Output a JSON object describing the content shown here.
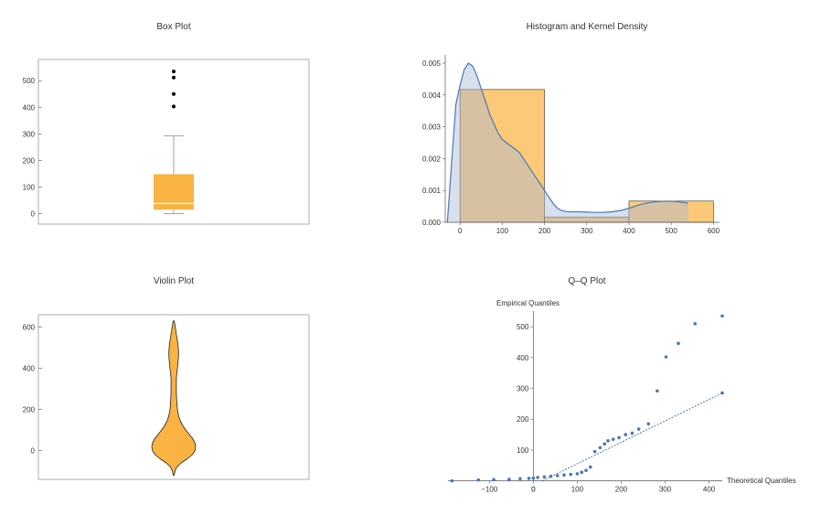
{
  "colors": {
    "orange": "#F9B343",
    "orange_light": "#FBC977",
    "blue": "#4A77B4",
    "blue_fill": "#D6DFEE",
    "frame": "#999999",
    "axis": "#555555",
    "text": "#333333"
  },
  "chart_data": [
    {
      "type": "box",
      "title": "Box Plot",
      "ylim": [
        -40,
        580
      ],
      "yticks": [
        0,
        100,
        200,
        300,
        400,
        500
      ],
      "box": {
        "whisker_low": 0,
        "q1": 15,
        "median": 38,
        "q3": 148,
        "whisker_high": 292
      },
      "outliers": [
        403,
        450,
        512,
        535
      ]
    },
    {
      "type": "histogram",
      "title": "Histogram and Kernel Density",
      "xlim": [
        -35,
        610
      ],
      "ylim": [
        0,
        0.0052
      ],
      "xticks": [
        0,
        100,
        200,
        300,
        400,
        500,
        600
      ],
      "yticks": [
        {
          "v": 0.0,
          "label": "0.000"
        },
        {
          "v": 0.001,
          "label": "0.001"
        },
        {
          "v": 0.002,
          "label": "0.002"
        },
        {
          "v": 0.003,
          "label": "0.003"
        },
        {
          "v": 0.004,
          "label": "0.004"
        },
        {
          "v": 0.005,
          "label": "0.005"
        }
      ],
      "bins": [
        {
          "x0": 0,
          "x1": 200,
          "density": 0.00417
        },
        {
          "x0": 200,
          "x1": 400,
          "density": 0.000167
        },
        {
          "x0": 400,
          "x1": 600,
          "density": 0.000667
        }
      ],
      "density": {
        "x": [
          -30,
          -10,
          0,
          10,
          20,
          30,
          40,
          50,
          60,
          70,
          80,
          90,
          100,
          110,
          120,
          130,
          140,
          150,
          160,
          170,
          180,
          190,
          200,
          210,
          220,
          230,
          240,
          250,
          260,
          280,
          300,
          320,
          340,
          360,
          380,
          400,
          420,
          440,
          460,
          480,
          500,
          520,
          540
        ],
        "y": [
          0.0,
          0.0037,
          0.0043,
          0.0048,
          0.005,
          0.0049,
          0.0046,
          0.0042,
          0.0038,
          0.0034,
          0.0031,
          0.0028,
          0.0026,
          0.0025,
          0.0024,
          0.0023,
          0.0022,
          0.002,
          0.0018,
          0.0016,
          0.0014,
          0.0012,
          0.001,
          0.0008,
          0.0006,
          0.00045,
          0.00037,
          0.00034,
          0.00033,
          0.00033,
          0.00032,
          0.00031,
          0.00031,
          0.00033,
          0.00037,
          0.00044,
          0.00053,
          0.0006,
          0.00064,
          0.00066,
          0.00066,
          0.00064,
          0.0006
        ]
      }
    },
    {
      "type": "violin",
      "title": "Violin Plot",
      "ylim": [
        -140,
        660
      ],
      "yticks": [
        0,
        200,
        400,
        600
      ],
      "profile": {
        "y": [
          -120,
          -100,
          -80,
          -60,
          -40,
          -20,
          0,
          20,
          40,
          60,
          80,
          100,
          120,
          140,
          160,
          180,
          200,
          220,
          240,
          260,
          280,
          300,
          320,
          340,
          360,
          380,
          400,
          420,
          440,
          460,
          480,
          500,
          520,
          540,
          560,
          580,
          600,
          620,
          630
        ],
        "half_width": [
          0.02,
          0.06,
          0.14,
          0.34,
          0.62,
          0.85,
          0.97,
          1.0,
          0.96,
          0.85,
          0.7,
          0.55,
          0.42,
          0.32,
          0.25,
          0.2,
          0.17,
          0.15,
          0.14,
          0.13,
          0.12,
          0.12,
          0.12,
          0.12,
          0.13,
          0.15,
          0.17,
          0.19,
          0.21,
          0.22,
          0.22,
          0.21,
          0.19,
          0.16,
          0.13,
          0.1,
          0.07,
          0.04,
          0.02
        ]
      }
    },
    {
      "type": "scatter",
      "title": "Q–Q Plot",
      "xlabel": "Theoretical Quantiles",
      "ylabel": "Empirical Quantiles",
      "xlim": [
        -190,
        430
      ],
      "ylim": [
        -10,
        545
      ],
      "xticks": [
        -100,
        0,
        100,
        200,
        300,
        400
      ],
      "yticks": [
        100,
        200,
        300,
        400,
        500
      ],
      "reference_line": {
        "x": [
          20,
          430
        ],
        "y": [
          0,
          285
        ]
      },
      "points": {
        "x": [
          -185,
          -125,
          -90,
          -55,
          -30,
          -10,
          0,
          10,
          25,
          40,
          55,
          70,
          85,
          100,
          110,
          120,
          130,
          140,
          152,
          162,
          170,
          182,
          195,
          210,
          225,
          240,
          262,
          282,
          302,
          330,
          368,
          430
        ],
        "y": [
          0,
          3,
          4,
          5,
          7,
          8,
          9,
          11,
          13,
          15,
          17,
          19,
          21,
          23,
          28,
          34,
          45,
          95,
          108,
          120,
          130,
          135,
          140,
          150,
          155,
          168,
          185,
          292,
          402,
          446,
          510,
          535
        ]
      },
      "outlier_point": {
        "x": 430,
        "y": 285
      }
    }
  ]
}
